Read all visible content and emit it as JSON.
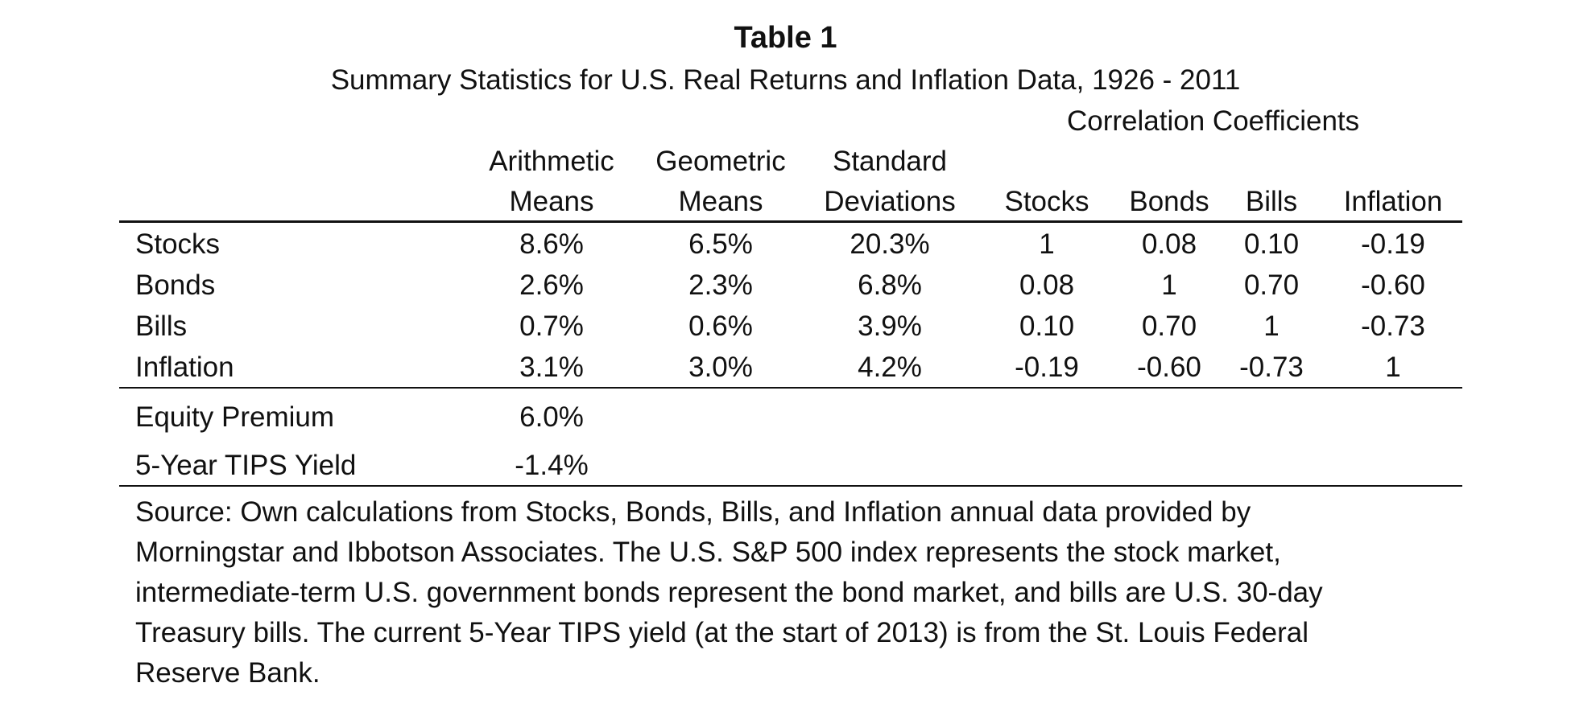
{
  "title": "Table 1",
  "subtitle": "Summary Statistics for U.S. Real Returns and Inflation Data, 1926 - 2011",
  "correlation_header": "Correlation Coefficients",
  "columns": [
    {
      "line1": "Arithmetic",
      "line2": "Means"
    },
    {
      "line1": "Geometric",
      "line2": "Means"
    },
    {
      "line1": "Standard",
      "line2": "Deviations"
    },
    {
      "line1": "",
      "line2": "Stocks"
    },
    {
      "line1": "",
      "line2": "Bonds"
    },
    {
      "line1": "",
      "line2": "Bills"
    },
    {
      "line1": "",
      "line2": "Inflation"
    }
  ],
  "rows": [
    {
      "label": "Stocks",
      "values": [
        "8.6%",
        "6.5%",
        "20.3%",
        "1",
        "0.08",
        "0.10",
        "-0.19"
      ]
    },
    {
      "label": "Bonds",
      "values": [
        "2.6%",
        "2.3%",
        "6.8%",
        "0.08",
        "1",
        "0.70",
        "-0.60"
      ]
    },
    {
      "label": "Bills",
      "values": [
        "0.7%",
        "0.6%",
        "3.9%",
        "0.10",
        "0.70",
        "1",
        "-0.73"
      ]
    },
    {
      "label": "Inflation",
      "values": [
        "3.1%",
        "3.0%",
        "4.2%",
        "-0.19",
        "-0.60",
        "-0.73",
        "1"
      ]
    }
  ],
  "extra_rows": [
    {
      "label": "Equity Premium",
      "value": "6.0%"
    },
    {
      "label": "5-Year TIPS Yield",
      "value": "-1.4%"
    }
  ],
  "source_lines": [
    "Source: Own calculations from Stocks, Bonds, Bills, and Inflation annual data provided by",
    "Morningstar and Ibbotson Associates. The U.S. S&P 500 index represents the stock market,",
    "intermediate-term U.S. government bonds represent the bond market, and bills are U.S. 30-day",
    "Treasury bills. The current 5-Year TIPS yield (at the start of 2013) is from the St. Louis Federal",
    "Reserve Bank."
  ]
}
